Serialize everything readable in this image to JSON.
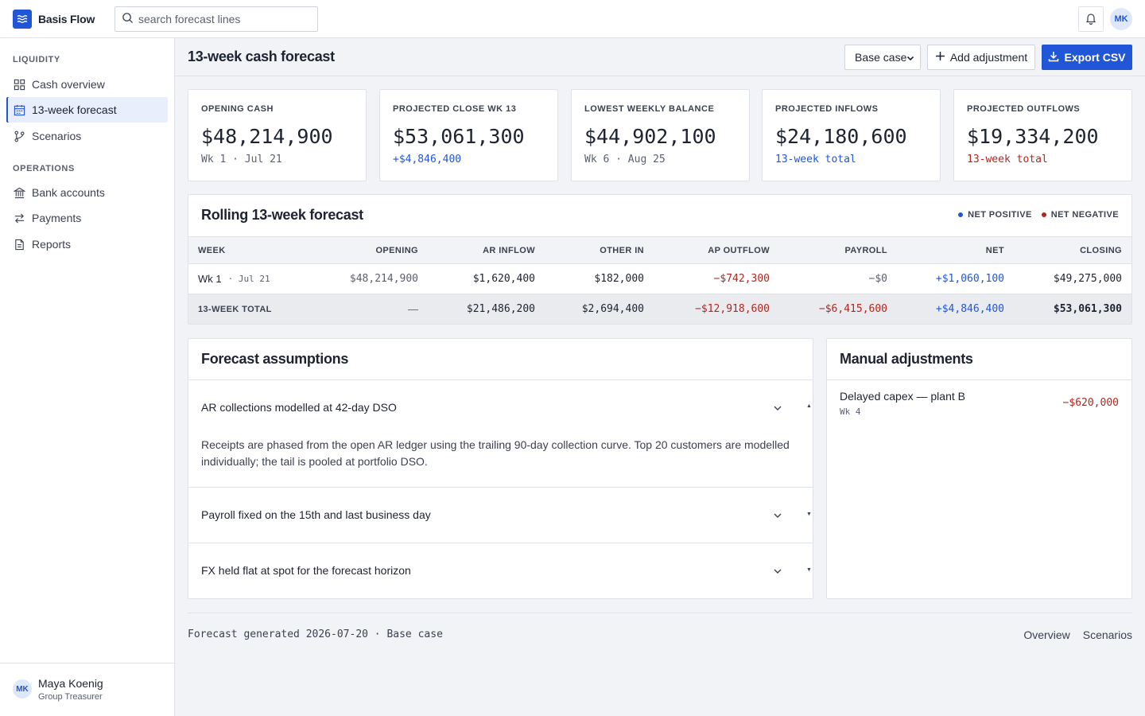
{
  "app": {
    "name": "Basis Flow"
  },
  "search": {
    "placeholder": "search forecast lines"
  },
  "user": {
    "initials": "MK",
    "name": "Maya Koenig",
    "role": "Group Treasurer"
  },
  "sidebar": {
    "sections": [
      {
        "title": "LIQUIDITY",
        "items": [
          {
            "label": "Cash overview",
            "icon": "grid-icon",
            "active": false
          },
          {
            "label": "13-week forecast",
            "icon": "calendar-icon",
            "active": true
          },
          {
            "label": "Scenarios",
            "icon": "branch-icon",
            "active": false
          }
        ]
      },
      {
        "title": "OPERATIONS",
        "items": [
          {
            "label": "Bank accounts",
            "icon": "bank-icon",
            "active": false
          },
          {
            "label": "Payments",
            "icon": "transfer-icon",
            "active": false
          },
          {
            "label": "Reports",
            "icon": "document-icon",
            "active": false
          }
        ]
      }
    ]
  },
  "header": {
    "title": "13-week cash forecast",
    "scenario_selected": "Base case",
    "add_adjustment_label": "Add adjustment",
    "export_label": "Export CSV"
  },
  "kpis": [
    {
      "label": "OPENING CASH",
      "value": "$48,214,900",
      "sub": "Wk 1 · Jul 21",
      "tone": "muted"
    },
    {
      "label": "PROJECTED CLOSE WK 13",
      "value": "$53,061,300",
      "sub": "+$4,846,400",
      "tone": "blue"
    },
    {
      "label": "LOWEST WEEKLY BALANCE",
      "value": "$44,902,100",
      "sub": "Wk 6 · Aug 25",
      "tone": "muted"
    },
    {
      "label": "PROJECTED INFLOWS",
      "value": "$24,180,600",
      "sub": "13-week total",
      "tone": "blue"
    },
    {
      "label": "PROJECTED OUTFLOWS",
      "value": "$19,334,200",
      "sub": "13-week total",
      "tone": "red"
    }
  ],
  "forecast": {
    "title": "Rolling 13-week forecast",
    "legend": {
      "positive": "NET POSITIVE",
      "negative": "NET NEGATIVE"
    },
    "columns": [
      "WEEK",
      "OPENING",
      "AR INFLOW",
      "OTHER IN",
      "AP OUTFLOW",
      "PAYROLL",
      "NET",
      "CLOSING"
    ],
    "rows": [
      {
        "week": "Wk 1",
        "date": "· Jul 21",
        "opening": "$48,214,900",
        "ar_inflow": "$1,620,400",
        "other_in": "$182,000",
        "ap_outflow": "−$742,300",
        "payroll": "−$0",
        "net": "+$1,060,100",
        "closing": "$49,275,000"
      }
    ],
    "total": {
      "label": "13-WEEK TOTAL",
      "opening": "—",
      "ar_inflow": "$21,486,200",
      "other_in": "$2,694,400",
      "ap_outflow": "−$12,918,600",
      "payroll": "−$6,415,600",
      "net": "+$4,846,400",
      "closing": "$53,061,300"
    }
  },
  "assumptions": {
    "title": "Forecast assumptions",
    "items": [
      {
        "title": "AR collections modelled at 42-day DSO",
        "expanded": true,
        "body": "Receipts are phased from the open AR ledger using the trailing 90-day collection curve. Top 20 customers are modelled individually; the tail is pooled at portfolio DSO.",
        "marker": "▲"
      },
      {
        "title": "Payroll fixed on the 15th and last business day",
        "expanded": false,
        "marker": "▼"
      },
      {
        "title": "FX held flat at spot for the forecast horizon",
        "expanded": false,
        "marker": "▼"
      }
    ]
  },
  "adjustments": {
    "title": "Manual adjustments",
    "items": [
      {
        "title": "Delayed capex — plant B",
        "week": "Wk 4",
        "amount": "−$620,000"
      }
    ]
  },
  "footer": {
    "text": "Forecast generated 2026-07-20 · Base case",
    "links": [
      "Overview",
      "Scenarios"
    ]
  },
  "colors": {
    "accent": "#2156d8",
    "negative": "#b3261e",
    "background": "#f1f3f6"
  }
}
